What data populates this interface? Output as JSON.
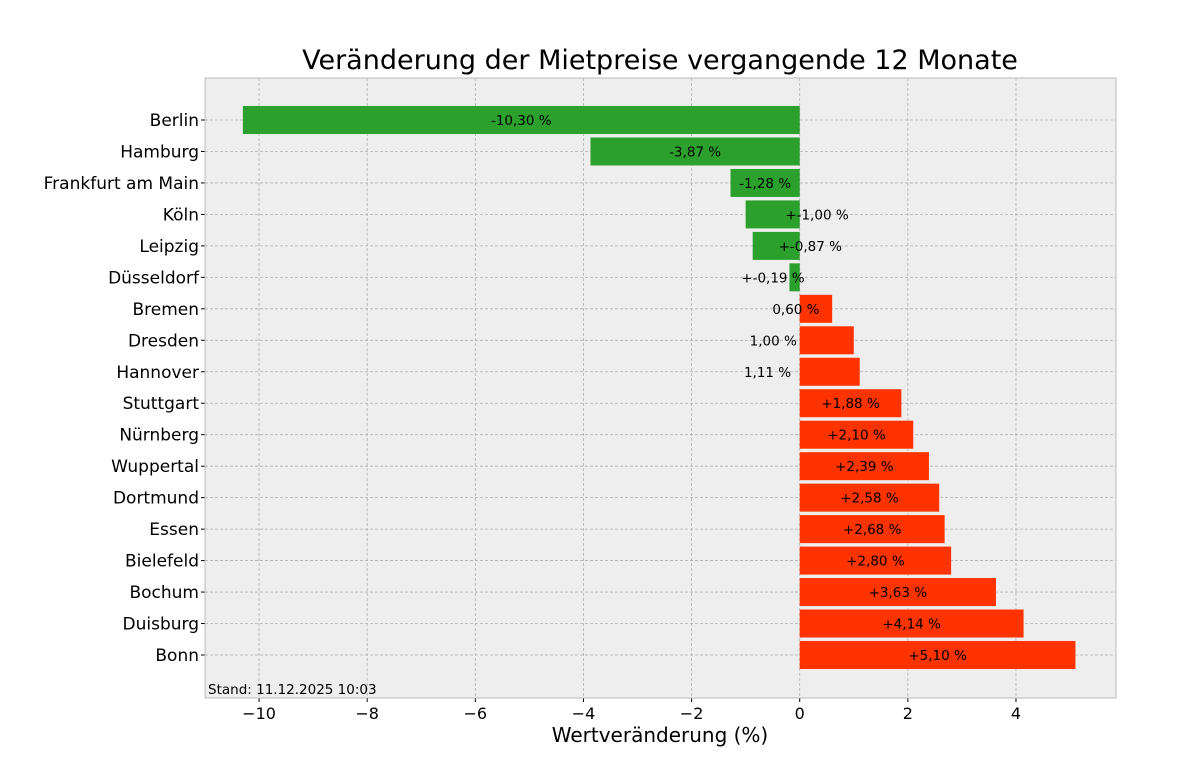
{
  "chart_data": {
    "type": "bar",
    "orientation": "horizontal",
    "title": "Veränderung der Mietpreise vergangende 12 Monate",
    "xlabel": "Wertveränderung (%)",
    "ylabel": "",
    "xlim": [
      -11.0,
      5.85
    ],
    "xticks": [
      -10,
      -8,
      -6,
      -4,
      -2,
      0,
      2,
      4
    ],
    "xtick_labels": [
      "−10",
      "−8",
      "−6",
      "−4",
      "−2",
      "0",
      "2",
      "4"
    ],
    "grid": true,
    "categories": [
      "Berlin",
      "Hamburg",
      "Frankfurt am Main",
      "Köln",
      "Leipzig",
      "Düsseldorf",
      "Bremen",
      "Dresden",
      "Hannover",
      "Stuttgart",
      "Nürnberg",
      "Wuppertal",
      "Dortmund",
      "Essen",
      "Bielefeld",
      "Bochum",
      "Duisburg",
      "Bonn"
    ],
    "values": [
      -10.3,
      -3.87,
      -1.28,
      -1.0,
      -0.87,
      -0.19,
      0.6,
      1.0,
      1.11,
      1.88,
      2.1,
      2.39,
      2.58,
      2.68,
      2.8,
      3.63,
      4.14,
      5.1
    ],
    "data_labels": [
      "-10,30 %",
      "-3,87 %",
      "-1,28 %",
      "+-1,00 %",
      "+-0,87 %",
      "+-0,19 %",
      "0,60 %",
      "1,00 %",
      "1,11 %",
      "+1,88 %",
      "+2,10 %",
      "+2,39 %",
      "+2,58 %",
      "+2,68 %",
      "+2,80 %",
      "+3,63 %",
      "+4,14 %",
      "+5,10 %"
    ],
    "colors": {
      "negative": "#2ca02c",
      "positive": "#ff3300",
      "background": "#eeeeee",
      "grid": "#b0b0b0"
    },
    "annotation": "Stand: 11.12.2025 10:03"
  }
}
